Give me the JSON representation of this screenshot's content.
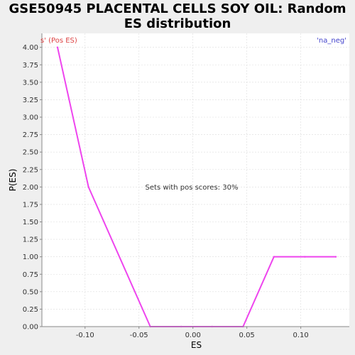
{
  "chart_data": {
    "type": "line",
    "title_line1": "GSE50945 PLACENTAL CELLS SOY OIL: Random",
    "title_line2": "ES distribution",
    "xlabel": "ES",
    "ylabel": "P(ES)",
    "xlim": [
      -0.14,
      0.145
    ],
    "ylim": [
      0,
      4.2
    ],
    "x_ticks": [
      -0.1,
      -0.05,
      0.0,
      0.05,
      0.1
    ],
    "x_tick_labels": [
      "-0.10",
      "-0.05",
      "0.00",
      "0.05",
      "0.10"
    ],
    "y_ticks": [
      0.0,
      0.25,
      0.5,
      0.75,
      1.0,
      1.25,
      1.5,
      1.75,
      2.0,
      2.25,
      2.5,
      2.75,
      3.0,
      3.25,
      3.5,
      3.75,
      4.0
    ],
    "y_tick_labels": [
      "0.00",
      "0.25",
      "0.50",
      "0.75",
      "1.00",
      "1.25",
      "1.50",
      "1.75",
      "2.00",
      "2.25",
      "2.50",
      "2.75",
      "3.00",
      "3.25",
      "3.50",
      "3.75",
      "4.00"
    ],
    "grid": true,
    "series": [
      {
        "color": "#ee44ee",
        "x": [
          -0.1255,
          -0.0968,
          -0.0395,
          -0.0109,
          0.0178,
          0.0465,
          0.0751,
          0.1038,
          0.1325
        ],
        "y": [
          4.0,
          2.0,
          0.0,
          0.0,
          0.0,
          0.0,
          1.0,
          1.0,
          1.0
        ]
      }
    ],
    "annotations": {
      "left_label": "s' (Pos ES)",
      "left_color": "#dd4444",
      "right_label": "'na_neg'",
      "right_color": "#4444cc",
      "center_label": "Sets with pos scores: 30%"
    }
  }
}
